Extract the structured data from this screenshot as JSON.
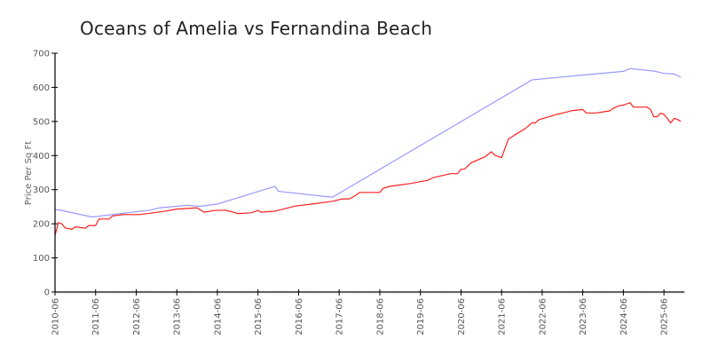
{
  "chart_data": {
    "type": "line",
    "title": "Oceans of Amelia vs Fernandina Beach",
    "xlabel": "",
    "ylabel": "Price Per Sq Ft",
    "xlim": [
      "2010-06",
      "2025-12"
    ],
    "ylim": [
      0,
      700
    ],
    "yticks": [
      0,
      100,
      200,
      300,
      400,
      500,
      600,
      700
    ],
    "xticks": [
      "2010-06",
      "2011-06",
      "2012-06",
      "2013-06",
      "2014-06",
      "2015-06",
      "2016-06",
      "2017-06",
      "2018-06",
      "2019-06",
      "2020-06",
      "2021-06",
      "2022-06",
      "2023-06",
      "2024-06",
      "2025-06"
    ],
    "grid": false,
    "legend": "none",
    "series": [
      {
        "color": "#9999ff",
        "points": [
          [
            "2010-06",
            241
          ],
          [
            "2010-07",
            241
          ],
          [
            "2011-05",
            220
          ],
          [
            "2012-10",
            240
          ],
          [
            "2013-01",
            247
          ],
          [
            "2013-09",
            254
          ],
          [
            "2014-01",
            251
          ],
          [
            "2014-06",
            258
          ],
          [
            "2015-11",
            310
          ],
          [
            "2015-12",
            295
          ],
          [
            "2017-04",
            278
          ],
          [
            "2022-03",
            622
          ],
          [
            "2023-06",
            636
          ],
          [
            "2024-06",
            647
          ],
          [
            "2024-08",
            655
          ],
          [
            "2025-03",
            648
          ],
          [
            "2025-06",
            641
          ],
          [
            "2025-09",
            639
          ],
          [
            "2025-11",
            630
          ]
        ]
      },
      {
        "color": "#ff2020",
        "points": [
          [
            "2010-06",
            166
          ],
          [
            "2010-07",
            203
          ],
          [
            "2010-08",
            200
          ],
          [
            "2010-09",
            188
          ],
          [
            "2010-11",
            184
          ],
          [
            "2010-12",
            191
          ],
          [
            "2011-03",
            187
          ],
          [
            "2011-04",
            195
          ],
          [
            "2011-06",
            195
          ],
          [
            "2011-07",
            214
          ],
          [
            "2011-10",
            214
          ],
          [
            "2011-11",
            223
          ],
          [
            "2012-02",
            227
          ],
          [
            "2012-07",
            227
          ],
          [
            "2013-02",
            236
          ],
          [
            "2013-06",
            243
          ],
          [
            "2013-12",
            247
          ],
          [
            "2014-02",
            234
          ],
          [
            "2014-05",
            239
          ],
          [
            "2014-08",
            240
          ],
          [
            "2014-10",
            236
          ],
          [
            "2014-12",
            230
          ],
          [
            "2015-04",
            232
          ],
          [
            "2015-06",
            239
          ],
          [
            "2015-07",
            234
          ],
          [
            "2015-11",
            237
          ],
          [
            "2016-05",
            252
          ],
          [
            "2016-10",
            258
          ],
          [
            "2017-04",
            266
          ],
          [
            "2017-07",
            273
          ],
          [
            "2017-09",
            273
          ],
          [
            "2017-11",
            284
          ],
          [
            "2017-12",
            292
          ],
          [
            "2018-06",
            292
          ],
          [
            "2018-07",
            304
          ],
          [
            "2018-09",
            310
          ],
          [
            "2019-03",
            318
          ],
          [
            "2019-08",
            327
          ],
          [
            "2019-10",
            336
          ],
          [
            "2020-03",
            347
          ],
          [
            "2020-05",
            347
          ],
          [
            "2020-06",
            360
          ],
          [
            "2020-07",
            360
          ],
          [
            "2020-09",
            379
          ],
          [
            "2021-01",
            396
          ],
          [
            "2021-03",
            411
          ],
          [
            "2021-04",
            401
          ],
          [
            "2021-06",
            394
          ],
          [
            "2021-08",
            448
          ],
          [
            "2021-10",
            461
          ],
          [
            "2022-01",
            479
          ],
          [
            "2022-03",
            496
          ],
          [
            "2022-04",
            496
          ],
          [
            "2022-05",
            505
          ],
          [
            "2022-10",
            520
          ],
          [
            "2023-03",
            532
          ],
          [
            "2023-06",
            535
          ],
          [
            "2023-07",
            525
          ],
          [
            "2023-10",
            525
          ],
          [
            "2024-02",
            531
          ],
          [
            "2024-03",
            539
          ],
          [
            "2024-05",
            547
          ],
          [
            "2024-06",
            548
          ],
          [
            "2024-08",
            555
          ],
          [
            "2024-09",
            542
          ],
          [
            "2025-01",
            542
          ],
          [
            "2025-02",
            535
          ],
          [
            "2025-03",
            514
          ],
          [
            "2025-04",
            514
          ],
          [
            "2025-05",
            524
          ],
          [
            "2025-06",
            521
          ],
          [
            "2025-08",
            496
          ],
          [
            "2025-09",
            509
          ],
          [
            "2025-10",
            506
          ],
          [
            "2025-11",
            500
          ]
        ]
      }
    ]
  }
}
